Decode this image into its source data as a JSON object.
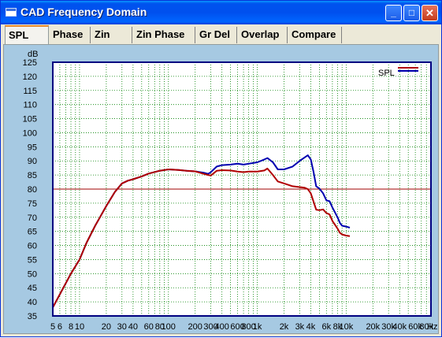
{
  "window": {
    "title": "CAD Frequency Domain",
    "minimize_glyph": "_",
    "maximize_glyph": "□",
    "close_glyph": "✕"
  },
  "tabs": [
    {
      "label": "SPL",
      "active": true
    },
    {
      "label": "Phase",
      "active": false
    },
    {
      "label": "Zin",
      "active": false
    },
    {
      "label": "Zin Phase",
      "active": false
    },
    {
      "label": "Gr Del",
      "active": false
    },
    {
      "label": "Overlap",
      "active": false
    },
    {
      "label": "Compare",
      "active": false
    }
  ],
  "colors": {
    "plot_bg": "#ffffff",
    "panel_bg": "#a6c9e2",
    "frame": "#000080",
    "grid": "#008000",
    "reference_line": "#a00000",
    "series_red": "#b00000",
    "series_blue": "#0000b0"
  },
  "chart_data": {
    "type": "line",
    "x_scale": "log",
    "xlim": [
      5,
      90000
    ],
    "ylim": [
      35,
      125
    ],
    "y_unit_label": "dB",
    "x_unit_label": "Hz",
    "grid": true,
    "legend_placement": "top-right",
    "legend_label": "SPL",
    "y_ticks": [
      35,
      40,
      45,
      50,
      55,
      60,
      65,
      70,
      75,
      80,
      85,
      90,
      95,
      100,
      105,
      110,
      115,
      120,
      125
    ],
    "x_ticks": [
      {
        "value": 5,
        "label": "5"
      },
      {
        "value": 6,
        "label": "6"
      },
      {
        "value": 8,
        "label": "8"
      },
      {
        "value": 10,
        "label": "10"
      },
      {
        "value": 20,
        "label": "20"
      },
      {
        "value": 30,
        "label": "30"
      },
      {
        "value": 40,
        "label": "40"
      },
      {
        "value": 60,
        "label": "60"
      },
      {
        "value": 80,
        "label": "80"
      },
      {
        "value": 100,
        "label": "100"
      },
      {
        "value": 200,
        "label": "200"
      },
      {
        "value": 300,
        "label": "300"
      },
      {
        "value": 400,
        "label": "400"
      },
      {
        "value": 600,
        "label": "600"
      },
      {
        "value": 800,
        "label": "800"
      },
      {
        "value": 1000,
        "label": "1k"
      },
      {
        "value": 2000,
        "label": "2k"
      },
      {
        "value": 3000,
        "label": "3k"
      },
      {
        "value": 4000,
        "label": "4k"
      },
      {
        "value": 6000,
        "label": "6k"
      },
      {
        "value": 8000,
        "label": "8k"
      },
      {
        "value": 10000,
        "label": "10k"
      },
      {
        "value": 20000,
        "label": "20k"
      },
      {
        "value": 30000,
        "label": "30k"
      },
      {
        "value": 40000,
        "label": "40k"
      },
      {
        "value": 60000,
        "label": "60k"
      },
      {
        "value": 80000,
        "label": "80k"
      }
    ],
    "reference_line": {
      "y": 80
    },
    "series": [
      {
        "color_key": "series_blue",
        "x": [
          5,
          8,
          10,
          12,
          15,
          20,
          25,
          30,
          35,
          40,
          50,
          60,
          80,
          100,
          130,
          160,
          200,
          250,
          280,
          300,
          350,
          400,
          500,
          600,
          700,
          800,
          1000,
          1200,
          1300,
          1500,
          1700,
          2000,
          2500,
          3000,
          3400,
          3700,
          4000,
          4300,
          4600,
          5000,
          5500,
          6000,
          6500,
          7000,
          8000,
          8500,
          9000,
          10000,
          11000
        ],
        "y": [
          38,
          50,
          55,
          61,
          67,
          74,
          79,
          82,
          83,
          83.5,
          84.5,
          85.5,
          86.5,
          87,
          86.8,
          86.5,
          86.3,
          85.8,
          85.4,
          86,
          88,
          88.5,
          88.7,
          89,
          88.7,
          89,
          89.5,
          90.5,
          91,
          89.5,
          87,
          87,
          88,
          90,
          91.2,
          92,
          90.5,
          86,
          81,
          80.2,
          78.5,
          76,
          75.7,
          73.5,
          70,
          68,
          67,
          66.7,
          66.3
        ]
      },
      {
        "color_key": "series_red",
        "x": [
          5,
          8,
          10,
          12,
          15,
          20,
          25,
          30,
          35,
          40,
          50,
          60,
          80,
          100,
          130,
          160,
          200,
          250,
          280,
          300,
          350,
          400,
          500,
          600,
          700,
          800,
          1000,
          1200,
          1300,
          1500,
          1700,
          2000,
          2500,
          3000,
          3400,
          3700,
          4000,
          4300,
          4600,
          5000,
          5500,
          6000,
          6500,
          7000,
          8000,
          8500,
          9000,
          10000,
          11000
        ],
        "y": [
          38,
          50,
          55,
          61,
          67,
          74,
          79,
          82,
          83,
          83.5,
          84.5,
          85.5,
          86.5,
          87,
          86.8,
          86.5,
          86.3,
          85.4,
          85,
          84.8,
          86.5,
          86.7,
          86.6,
          86.2,
          86,
          86.2,
          86.2,
          86.6,
          87.3,
          85,
          82.7,
          82,
          81,
          80.7,
          80.5,
          80,
          78.5,
          75.5,
          72.7,
          72.5,
          72.8,
          71.5,
          71,
          68.7,
          66,
          64.5,
          63.9,
          63.5,
          63.3
        ]
      }
    ]
  }
}
